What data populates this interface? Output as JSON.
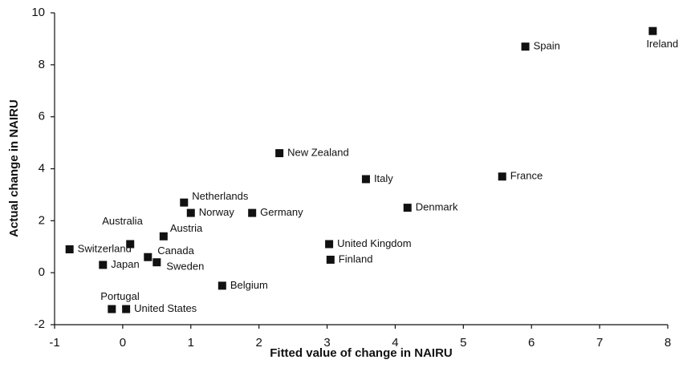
{
  "chart_data": {
    "type": "scatter",
    "xlabel": "Fitted value of change in NAIRU",
    "ylabel": "Actual change in NAIRU",
    "xlim": [
      -1,
      8
    ],
    "ylim": [
      -2,
      10
    ],
    "xticks": [
      -1,
      0,
      1,
      2,
      3,
      4,
      5,
      6,
      7,
      8
    ],
    "yticks": [
      -2,
      0,
      2,
      4,
      6,
      8,
      10
    ],
    "color": "#111111",
    "labels": [
      "Spain",
      "Ireland",
      "New Zealand",
      "Italy",
      "France",
      "Denmark",
      "Netherlands",
      "Norway",
      "Germany",
      "Austria",
      "Australia",
      "Switzerland",
      "Canada",
      "Sweden",
      "Japan",
      "United Kingdom",
      "Finland",
      "Belgium",
      "Portugal",
      "United States"
    ],
    "x": [
      5.91,
      7.78,
      2.3,
      3.57,
      5.57,
      4.18,
      0.9,
      1.0,
      1.9,
      0.6,
      0.11,
      -0.78,
      0.37,
      0.5,
      -0.29,
      3.03,
      3.05,
      1.46,
      -0.16,
      0.05
    ],
    "values": [
      8.7,
      9.3,
      4.6,
      3.6,
      3.7,
      2.5,
      2.7,
      2.3,
      2.3,
      1.4,
      1.1,
      0.9,
      0.6,
      0.4,
      0.3,
      1.1,
      0.5,
      -0.5,
      -1.4,
      -1.4
    ]
  }
}
